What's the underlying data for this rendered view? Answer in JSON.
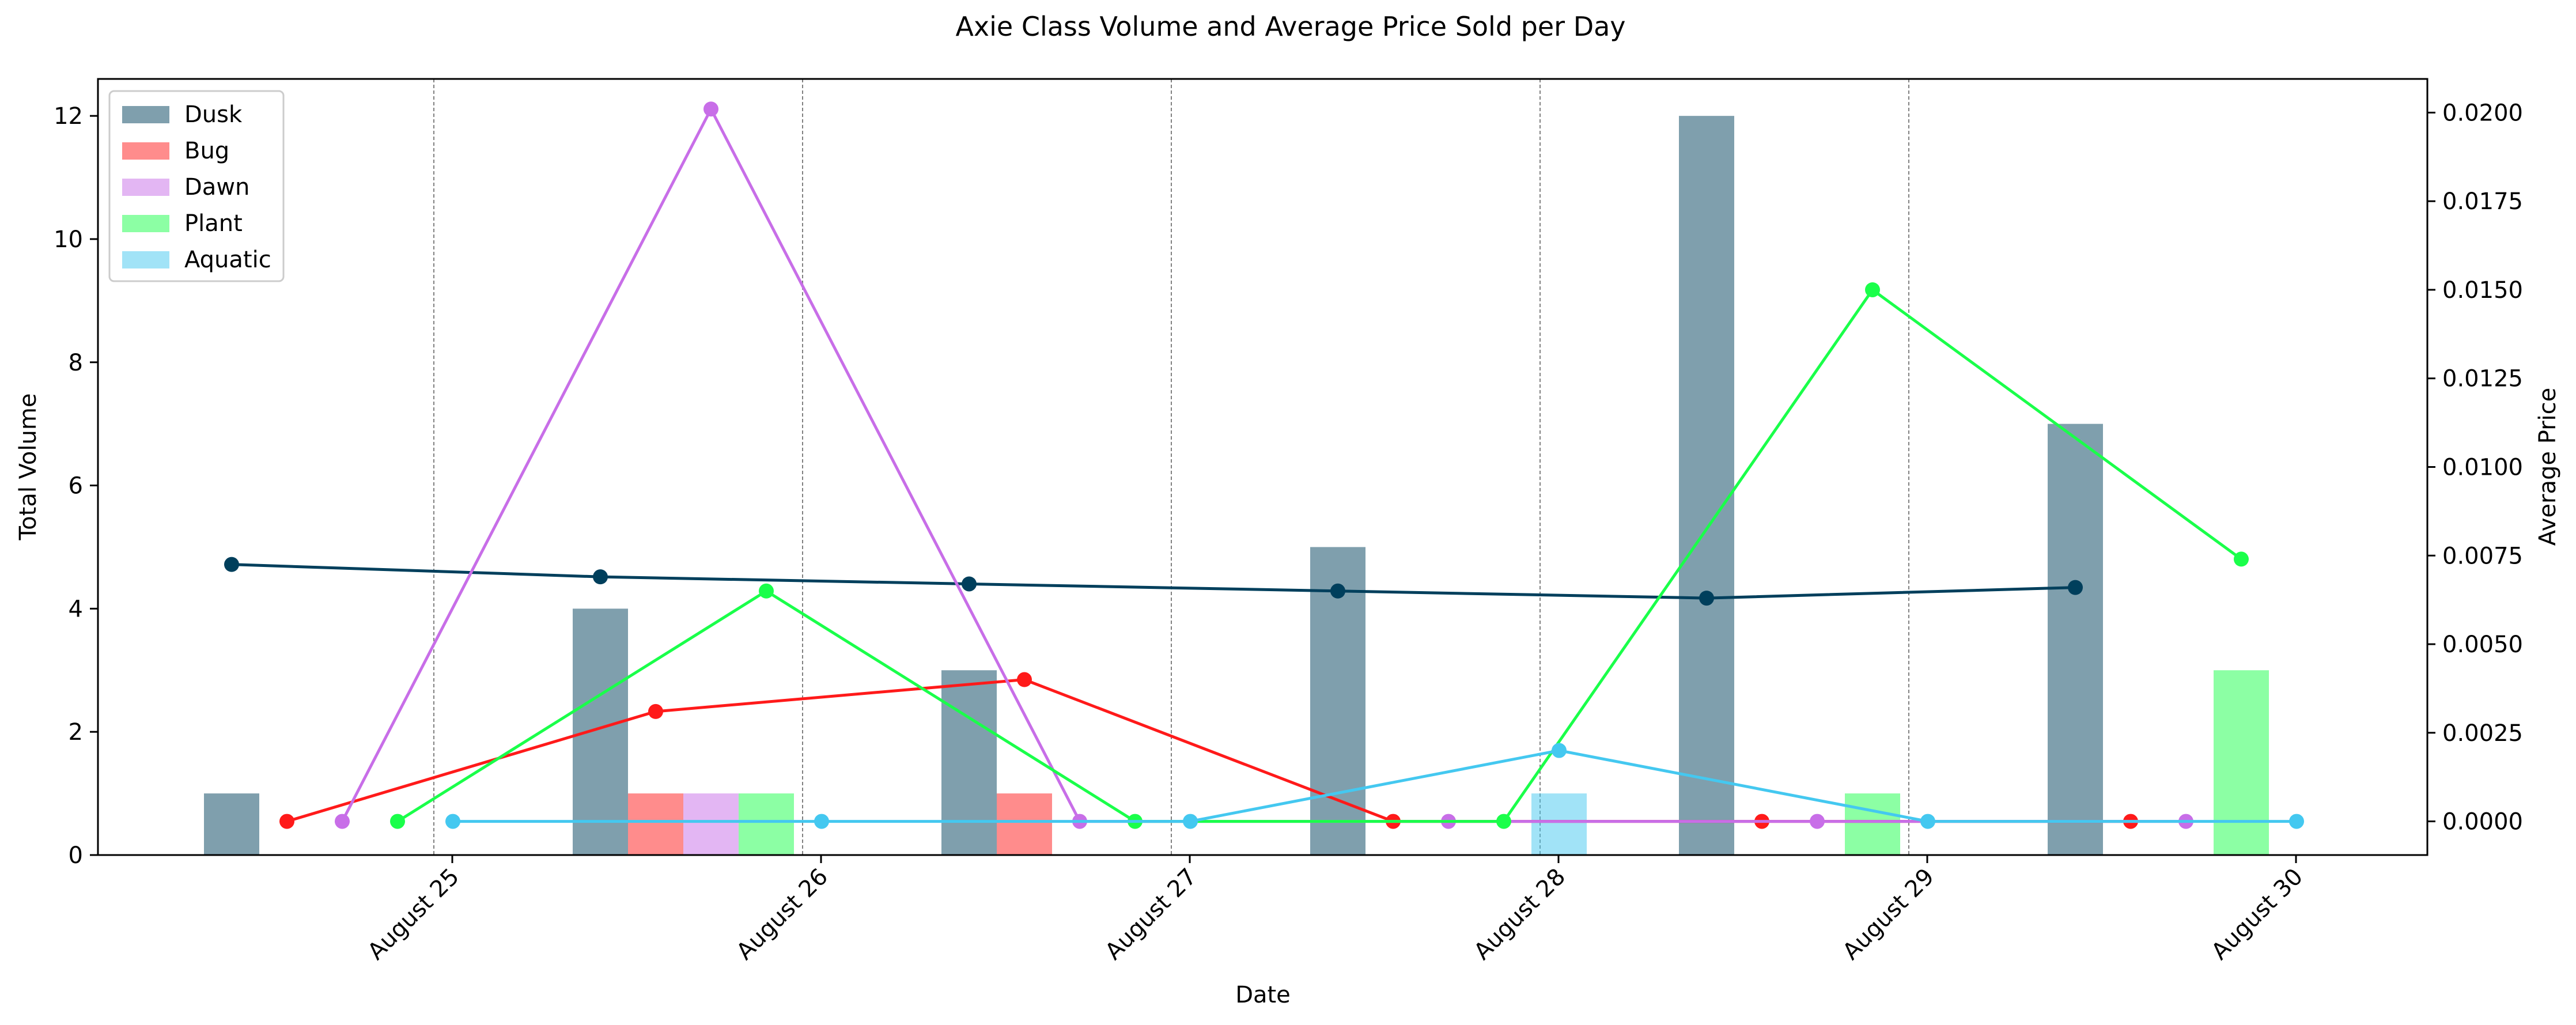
{
  "chart_data": {
    "type": "bar",
    "title": "Axie Class Volume and Average Price Sold per Day",
    "xlabel": "Date",
    "ylabel": "Total Volume",
    "y2label": "Average Price",
    "ylim": [
      0,
      12.6
    ],
    "y2lim": [
      -0.00095,
      0.02095
    ],
    "yticks": [
      0,
      2,
      4,
      6,
      8,
      10,
      12
    ],
    "y2ticks": [
      0.0,
      0.0025,
      0.005,
      0.0075,
      0.01,
      0.0125,
      0.015,
      0.0175,
      0.02
    ],
    "y2tick_labels": [
      "0.0000",
      "0.0025",
      "0.0050",
      "0.0075",
      "0.0100",
      "0.0125",
      "0.0150",
      "0.0175",
      "0.0200"
    ],
    "categories": [
      "August 25",
      "August 26",
      "August 27",
      "August 28",
      "August 29",
      "August 30"
    ],
    "legend_position": "upper-left",
    "grid": "vertical dashed separators between days",
    "series": [
      {
        "name": "Dusk",
        "color": "#003f5c",
        "volume": [
          1,
          4,
          3,
          5,
          12,
          7
        ],
        "avg_price": [
          0.00725,
          0.0069,
          0.0067,
          0.0065,
          0.0063,
          0.0066
        ]
      },
      {
        "name": "Bug",
        "color": "#ff1a1a",
        "volume": [
          0,
          1,
          1,
          0,
          0,
          0
        ],
        "avg_price": [
          0.0,
          0.0031,
          0.004,
          0.0,
          0.0,
          0.0
        ]
      },
      {
        "name": "Dawn",
        "color": "#c86ee8",
        "volume": [
          0,
          1,
          0,
          0,
          0,
          0
        ],
        "avg_price": [
          0.0,
          0.0201,
          0.0,
          0.0,
          0.0,
          0.0
        ]
      },
      {
        "name": "Plant",
        "color": "#1aff4a",
        "volume": [
          0,
          1,
          0,
          0,
          1,
          3
        ],
        "avg_price": [
          0.0,
          0.0065,
          0.0,
          0.0,
          0.015,
          0.0074
        ]
      },
      {
        "name": "Aquatic",
        "color": "#44c8f0",
        "volume": [
          0,
          0,
          0,
          1,
          0,
          0
        ],
        "avg_price": [
          0.0,
          0.0,
          0.0,
          0.002,
          0.0,
          0.0
        ]
      }
    ]
  }
}
